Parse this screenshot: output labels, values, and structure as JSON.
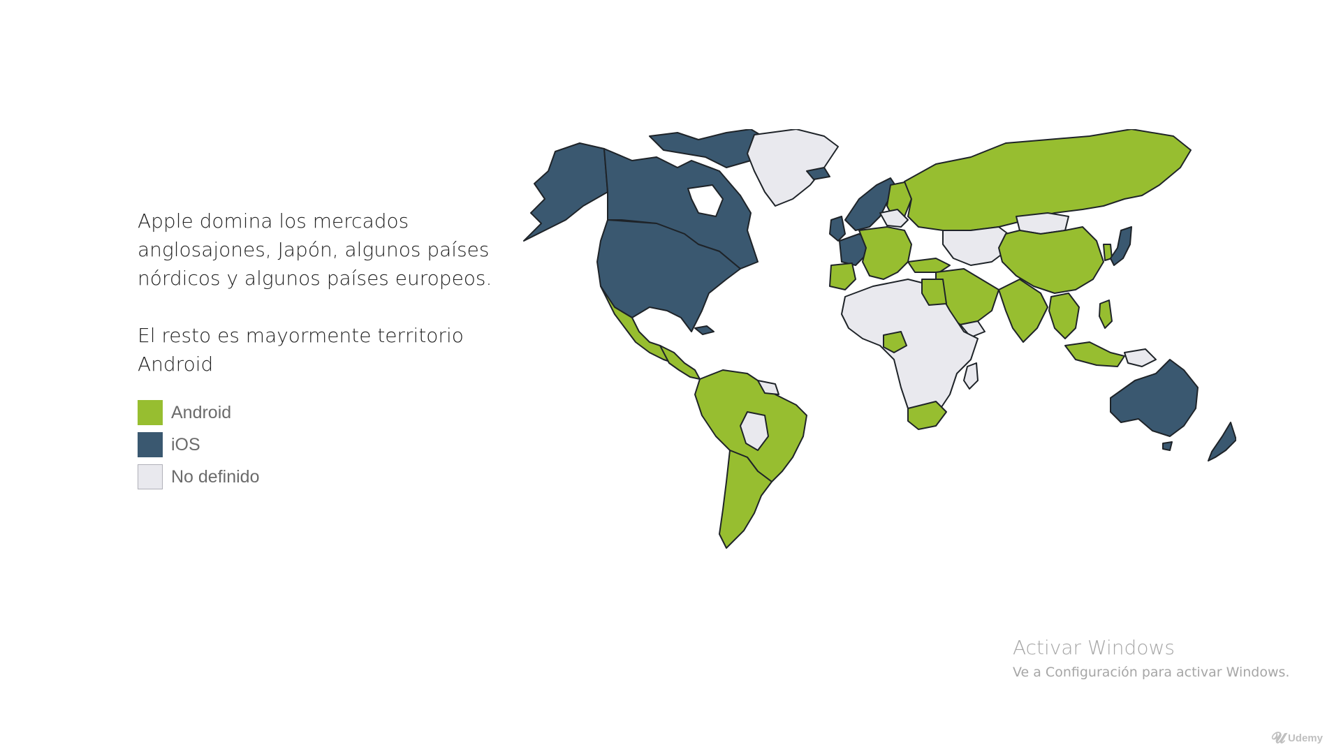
{
  "description": {
    "paragraph1": "Apple domina los mercados anglosajones, Japón, algunos países nórdicos y algunos países europeos.",
    "paragraph2": "El resto es mayormente territorio Android"
  },
  "legend": [
    {
      "label": "Android",
      "color": "#97be30"
    },
    {
      "label": "iOS",
      "color": "#3a5870"
    },
    {
      "label": "No definido",
      "color": "#e9e9ee"
    }
  ],
  "map": {
    "colors": {
      "android": "#97be30",
      "ios": "#3a5870",
      "undefined": "#e9e9ee",
      "border": "#1e2328"
    }
  },
  "watermark": {
    "title": "Activar Windows",
    "subtitle": "Ve a Configuración para activar Windows."
  },
  "brand": {
    "icon": "udemy-logo-icon",
    "label": "Udemy"
  }
}
